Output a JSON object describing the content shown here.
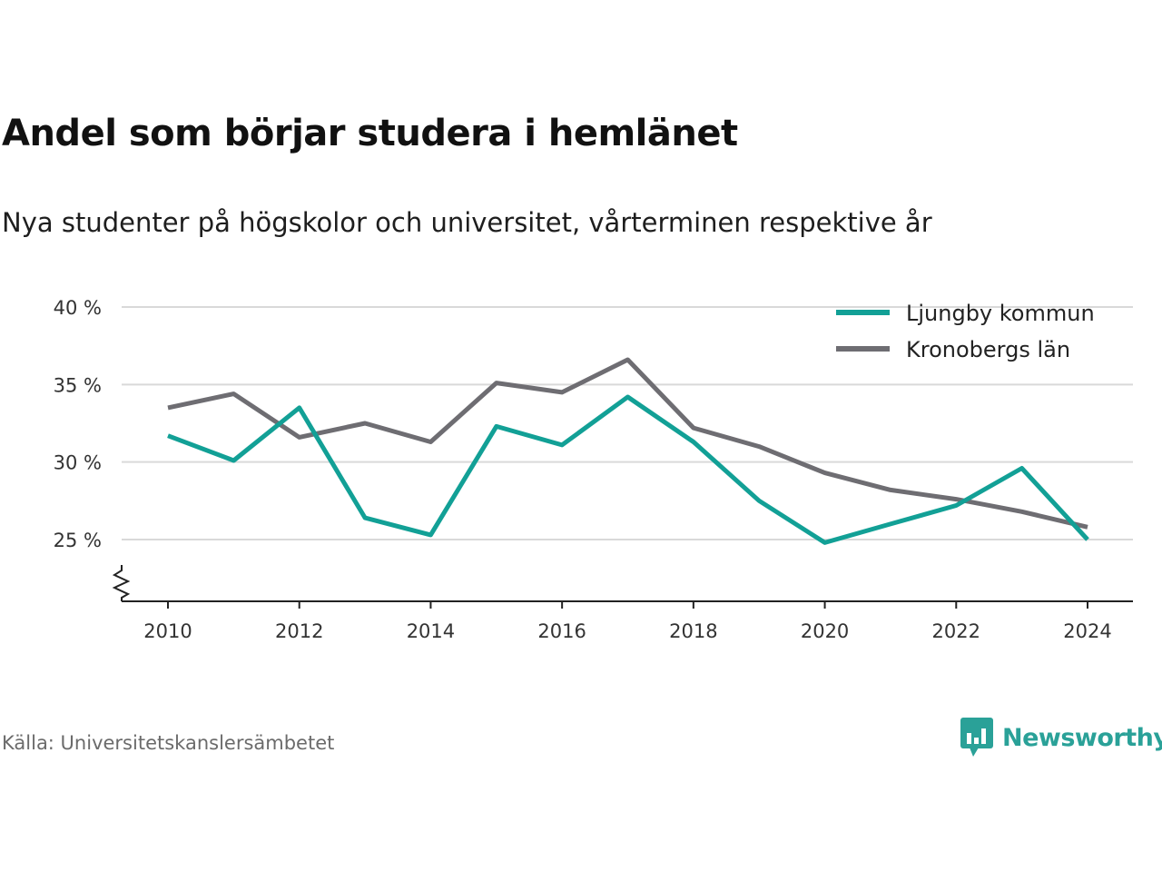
{
  "title": "Andel som börjar studera i hemlänet",
  "subtitle": "Nya studenter på högskolor och universitet, vårterminen respektive år",
  "source": "Källa: Universitetskanslersämbetet",
  "brand": {
    "name": "Newsworthy",
    "color": "#2aa198"
  },
  "chart_data": {
    "type": "line",
    "x": [
      2010,
      2011,
      2012,
      2013,
      2014,
      2015,
      2016,
      2017,
      2018,
      2019,
      2020,
      2021,
      2022,
      2023,
      2024
    ],
    "series": [
      {
        "name": "Ljungby kommun",
        "color": "#12a096",
        "values": [
          31.7,
          30.1,
          33.5,
          26.4,
          25.3,
          32.3,
          31.1,
          34.2,
          31.3,
          27.5,
          24.8,
          26.0,
          27.2,
          29.6,
          25.0
        ]
      },
      {
        "name": "Kronobergs län",
        "color": "#6e6d72",
        "values": [
          33.5,
          34.4,
          31.6,
          32.5,
          31.3,
          35.1,
          34.5,
          36.6,
          32.2,
          31.0,
          29.3,
          28.2,
          27.6,
          26.8,
          25.8
        ]
      }
    ],
    "xticks": [
      2010,
      2012,
      2014,
      2016,
      2018,
      2020,
      2022,
      2024
    ],
    "yticks": [
      25,
      30,
      35,
      40
    ],
    "ytick_labels": [
      "25 %",
      "30 %",
      "35 %",
      "40 %"
    ],
    "xlim": [
      2009.3,
      2024.7
    ],
    "ylim": [
      21,
      40
    ],
    "axis_break": true,
    "grid": true,
    "legend_position": "top-right"
  }
}
